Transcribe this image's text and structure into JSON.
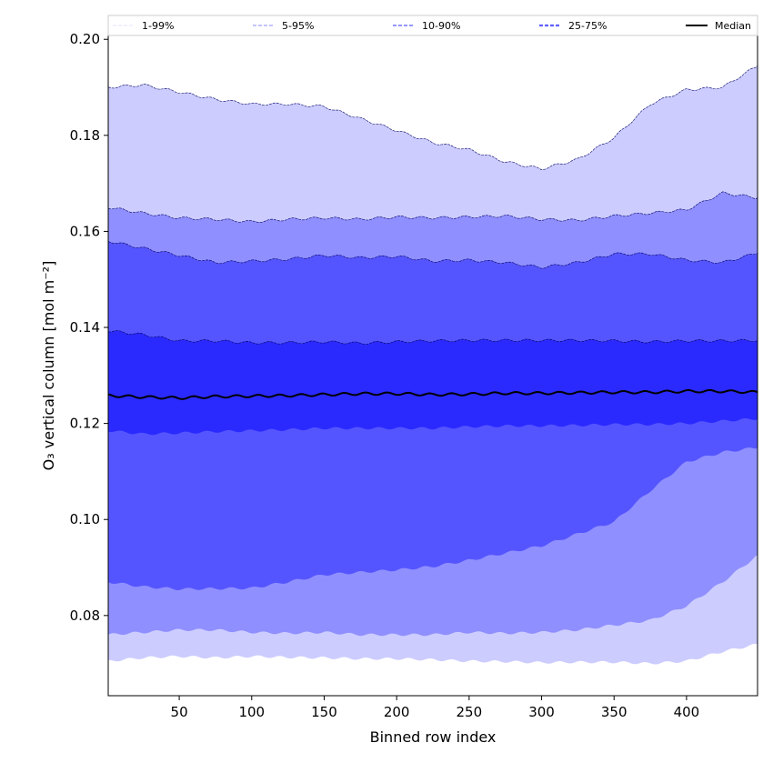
{
  "chart_data": {
    "type": "area",
    "title": "",
    "xlabel": "Binned row index",
    "ylabel": "O₃ vertical column [mol m⁻²]",
    "xlim": [
      1,
      449
    ],
    "ylim": [
      0.0633,
      0.2008
    ],
    "xticks": [
      50,
      100,
      150,
      200,
      250,
      300,
      350,
      400
    ],
    "yticks": [
      0.08,
      0.1,
      0.12,
      0.14,
      0.16,
      0.18,
      0.2
    ],
    "ytick_labels": [
      "0.08",
      "0.10",
      "0.12",
      "0.14",
      "0.16",
      "0.18",
      "0.20"
    ],
    "grid": false,
    "legend_position": "top",
    "legend": [
      "1-99%",
      "5-95%",
      "10-90%",
      "25-75%",
      "Median"
    ],
    "x": [
      1,
      25,
      50,
      75,
      100,
      125,
      150,
      175,
      200,
      225,
      250,
      275,
      300,
      325,
      350,
      375,
      400,
      425,
      449
    ],
    "series": [
      {
        "name": "p1",
        "values": [
          0.0705,
          0.0712,
          0.0715,
          0.0712,
          0.0715,
          0.0713,
          0.0712,
          0.071,
          0.071,
          0.0708,
          0.0705,
          0.0704,
          0.0702,
          0.0703,
          0.0703,
          0.07,
          0.0705,
          0.0725,
          0.074
        ]
      },
      {
        "name": "p5",
        "values": [
          0.076,
          0.0765,
          0.077,
          0.077,
          0.0765,
          0.0763,
          0.0765,
          0.076,
          0.076,
          0.076,
          0.0765,
          0.0763,
          0.0765,
          0.077,
          0.078,
          0.079,
          0.082,
          0.087,
          0.0925
        ]
      },
      {
        "name": "p10",
        "values": [
          0.087,
          0.086,
          0.0855,
          0.0856,
          0.0857,
          0.087,
          0.0885,
          0.089,
          0.0895,
          0.0902,
          0.0915,
          0.093,
          0.0945,
          0.097,
          0.0995,
          0.106,
          0.112,
          0.114,
          0.115
        ]
      },
      {
        "name": "p25",
        "values": [
          0.1185,
          0.1178,
          0.118,
          0.1183,
          0.1185,
          0.1187,
          0.119,
          0.119,
          0.119,
          0.119,
          0.1193,
          0.1195,
          0.1195,
          0.1196,
          0.1198,
          0.1198,
          0.12,
          0.1205,
          0.121
        ]
      },
      {
        "name": "Median",
        "values": [
          0.1258,
          0.1255,
          0.1253,
          0.1256,
          0.1257,
          0.1258,
          0.126,
          0.1262,
          0.1262,
          0.126,
          0.1261,
          0.1263,
          0.1263,
          0.1264,
          0.1265,
          0.1265,
          0.1267,
          0.1267,
          0.1265
        ]
      },
      {
        "name": "p75",
        "values": [
          0.1393,
          0.1385,
          0.1372,
          0.1372,
          0.1368,
          0.1368,
          0.137,
          0.1367,
          0.137,
          0.1372,
          0.1373,
          0.1373,
          0.1373,
          0.1373,
          0.1372,
          0.137,
          0.1372,
          0.1372,
          0.1373
        ]
      },
      {
        "name": "p90",
        "values": [
          0.158,
          0.1565,
          0.155,
          0.1535,
          0.1538,
          0.1542,
          0.155,
          0.1545,
          0.1548,
          0.1538,
          0.154,
          0.1535,
          0.1525,
          0.1535,
          0.1553,
          0.1553,
          0.154,
          0.1535,
          0.1555
        ]
      },
      {
        "name": "p95",
        "values": [
          0.165,
          0.1638,
          0.1628,
          0.1625,
          0.162,
          0.1625,
          0.1628,
          0.1625,
          0.163,
          0.1628,
          0.163,
          0.1632,
          0.1625,
          0.1623,
          0.1632,
          0.1638,
          0.1645,
          0.168,
          0.167
        ]
      },
      {
        "name": "p99",
        "values": [
          0.19,
          0.1905,
          0.189,
          0.1875,
          0.1865,
          0.1865,
          0.186,
          0.1835,
          0.181,
          0.1785,
          0.177,
          0.1745,
          0.173,
          0.175,
          0.1795,
          0.1865,
          0.1895,
          0.19,
          0.1945
        ]
      }
    ],
    "bands": [
      {
        "label": "1-99%",
        "lower": "p1",
        "upper": "p99",
        "color": "#ccccff",
        "legend_color": "#e0e0ff"
      },
      {
        "label": "5-95%",
        "lower": "p5",
        "upper": "p95",
        "color": "#8f8fff",
        "legend_color": "#b0b0ff"
      },
      {
        "label": "10-90%",
        "lower": "p10",
        "upper": "p90",
        "color": "#5555ff",
        "legend_color": "#8888ff"
      },
      {
        "label": "25-75%",
        "lower": "p25",
        "upper": "p75",
        "color": "#2a2aff",
        "legend_color": "#6060ff"
      }
    ],
    "median_color": "#000000"
  }
}
